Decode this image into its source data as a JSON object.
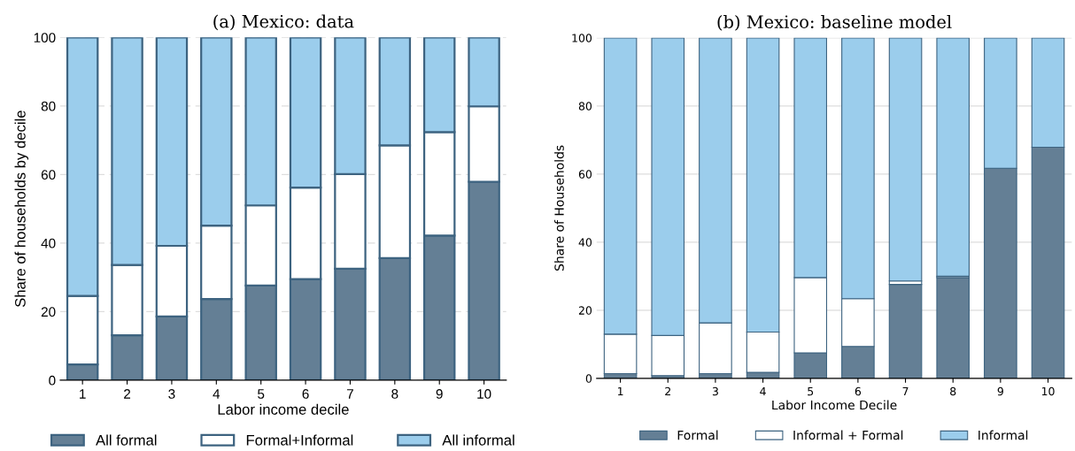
{
  "chart_data": [
    {
      "type": "bar",
      "title": "(a) Mexico: data",
      "xlabel": "Labor income decile",
      "ylabel": "Share of households by decile",
      "categories": [
        "1",
        "2",
        "3",
        "4",
        "5",
        "6",
        "7",
        "8",
        "9",
        "10"
      ],
      "stacked": true,
      "ylim": [
        0,
        100
      ],
      "yticks": [
        0,
        20,
        40,
        60,
        80,
        100
      ],
      "grid": "y",
      "legend": "bottom",
      "series": [
        {
          "name": "All formal",
          "color": "#647f95",
          "values": [
            4.6,
            13.1,
            18.6,
            23.7,
            27.6,
            29.5,
            32.5,
            35.6,
            42.2,
            57.9
          ]
        },
        {
          "name": "Formal+Informal",
          "color": "#ffffff",
          "values": [
            20.0,
            20.5,
            20.6,
            21.4,
            23.4,
            26.7,
            27.6,
            32.9,
            30.2,
            22.0
          ]
        },
        {
          "name": "All informal",
          "color": "#9bcdec",
          "values": [
            75.4,
            66.4,
            60.8,
            54.9,
            49.0,
            43.8,
            39.9,
            31.5,
            27.6,
            20.1
          ]
        }
      ]
    },
    {
      "type": "bar",
      "title": "(b) Mexico: baseline model",
      "xlabel": "Labor Income Decile",
      "ylabel": "Share of Households",
      "categories": [
        "1",
        "2",
        "3",
        "4",
        "5",
        "6",
        "7",
        "8",
        "9",
        "10"
      ],
      "stacked": true,
      "ylim": [
        0,
        100
      ],
      "yticks": [
        0,
        20,
        40,
        60,
        80,
        100
      ],
      "grid": "y",
      "legend": "bottom",
      "series": [
        {
          "name": "Formal",
          "color": "#647f95",
          "values": [
            1.4,
            0.8,
            1.4,
            1.8,
            7.5,
            9.4,
            27.6,
            29.6,
            61.7,
            67.9
          ]
        },
        {
          "name": "Informal + Formal",
          "color": "#ffffff",
          "values": [
            11.6,
            11.8,
            14.9,
            11.8,
            22.1,
            14.0,
            1.0,
            0.4,
            0,
            0
          ]
        },
        {
          "name": "Informal",
          "color": "#9bcdec",
          "values": [
            87.0,
            87.4,
            83.7,
            86.4,
            70.4,
            76.6,
            71.4,
            70.0,
            38.3,
            32.1
          ]
        }
      ]
    }
  ]
}
